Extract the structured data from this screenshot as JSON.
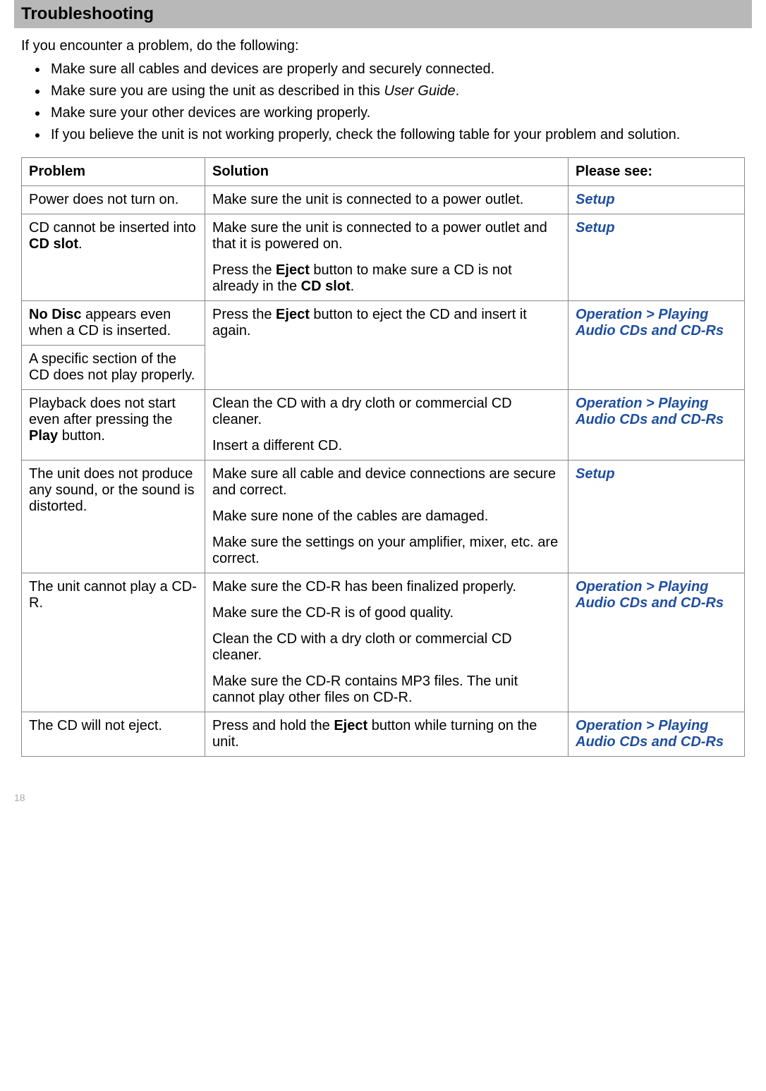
{
  "title": "Troubleshooting",
  "intro": "If you encounter a problem, do the following:",
  "bullets": {
    "b0": "Make sure all cables and devices are properly and securely connected.",
    "b1_pre": "Make sure you are using the unit as described in this ",
    "b1_italic": "User Guide",
    "b1_post": ".",
    "b2": "Make sure your other devices are working properly.",
    "b3": "If you believe the unit is not working properly, check the following table for your problem and solution."
  },
  "headers": {
    "problem": "Problem",
    "solution": "Solution",
    "see": "Please see:"
  },
  "rows": {
    "r0": {
      "problem": "Power does not turn on.",
      "solution": "Make sure the unit is connected to a power outlet.",
      "see": "Setup"
    },
    "r1": {
      "problem_pre": "CD cannot be inserted into ",
      "problem_bold": "CD slot",
      "problem_post": ".",
      "sol1": "Make sure the unit is connected to a power outlet and that it is powered on.",
      "sol2_pre": "Press the ",
      "sol2_b1": "Eject",
      "sol2_mid": " button to make sure a CD is not already in the ",
      "sol2_b2": "CD slot",
      "sol2_post": ".",
      "see": "Setup"
    },
    "r2a": {
      "problem_b": "No Disc",
      "problem_post": " appears even when a CD is inserted."
    },
    "r2b": {
      "problem": "A specific section of the CD does not play properly."
    },
    "r2": {
      "sol_pre": "Press the ",
      "sol_b": "Eject",
      "sol_post": " button to eject the CD and insert it again.",
      "see": "Operation > Playing Audio CDs and CD-Rs"
    },
    "r3": {
      "problem_pre": "Playback does not start even after pressing the ",
      "problem_b": "Play",
      "problem_post": " button.",
      "sol1": "Clean the CD with a dry cloth or commercial CD cleaner.",
      "sol2": "Insert a different CD.",
      "see": "Operation > Playing Audio CDs and CD-Rs"
    },
    "r4": {
      "problem": "The unit does not produce any sound, or the sound is distorted.",
      "sol1": "Make sure all cable and device connections are secure and correct.",
      "sol2": "Make sure none of the cables are damaged.",
      "sol3": "Make sure the settings on your amplifier, mixer, etc. are correct.",
      "see": "Setup"
    },
    "r5": {
      "problem": "The unit cannot play a CD-R.",
      "sol1": "Make sure the CD-R has been finalized properly.",
      "sol2": "Make sure the CD-R is of good quality.",
      "sol3": "Clean the CD with a dry cloth or commercial CD cleaner.",
      "sol4": "Make sure the CD-R contains MP3 files. The unit cannot play other files on CD-R.",
      "see": "Operation > Playing Audio CDs and CD-Rs"
    },
    "r6": {
      "problem": "The CD will not eject.",
      "sol_pre": "Press and hold the ",
      "sol_b": "Eject",
      "sol_post": " button while turning on the unit.",
      "see": "Operation > Playing Audio CDs and CD-Rs"
    }
  },
  "page_number": "18",
  "colors": {
    "title_bg": "#b8b8b8",
    "link": "#1f4fa0",
    "border": "#888888",
    "pagenum": "#aaaaaa"
  }
}
